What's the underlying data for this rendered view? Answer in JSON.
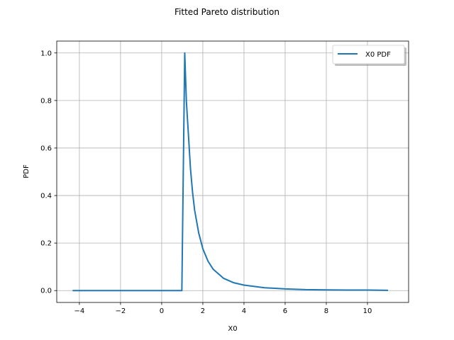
{
  "chart_data": {
    "type": "line",
    "title": "Fitted Pareto distribution",
    "xlabel": "X0",
    "ylabel": "PDF",
    "xlim": [
      -5.1,
      12.0
    ],
    "ylim": [
      -0.05,
      1.05
    ],
    "xticks": [
      -4,
      -2,
      0,
      2,
      4,
      6,
      8,
      10
    ],
    "yticks": [
      0.0,
      0.2,
      0.4,
      0.6,
      0.8,
      1.0
    ],
    "xtick_labels": [
      "−4",
      "−2",
      "0",
      "2",
      "4",
      "6",
      "8",
      "10"
    ],
    "ytick_labels": [
      "0.0",
      "0.2",
      "0.4",
      "0.6",
      "0.8",
      "1.0"
    ],
    "grid": true,
    "legend": "top-right",
    "series": [
      {
        "name": "X0 PDF",
        "color": "#1f77b4",
        "x": [
          -4.33,
          0.98,
          1.12,
          1.2,
          1.3,
          1.4,
          1.5,
          1.6,
          1.8,
          2.0,
          2.25,
          2.5,
          3.0,
          3.5,
          4.0,
          5.0,
          6.0,
          7.0,
          8.0,
          9.0,
          10.0,
          11.0
        ],
        "y": [
          0.0,
          0.0,
          1.0,
          0.796,
          0.655,
          0.512,
          0.414,
          0.339,
          0.242,
          0.176,
          0.124,
          0.09,
          0.052,
          0.033,
          0.023,
          0.012,
          0.007,
          0.004,
          0.003,
          0.002,
          0.002,
          0.001
        ]
      }
    ]
  }
}
